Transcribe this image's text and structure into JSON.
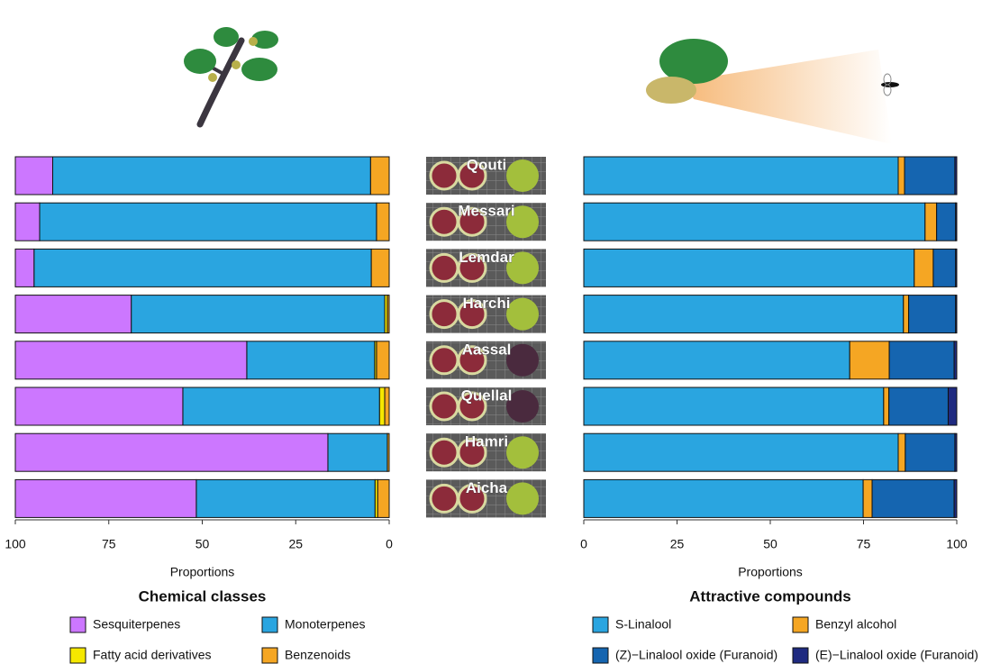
{
  "chart_data": [
    {
      "type": "bar",
      "orientation": "horizontal",
      "stacked": true,
      "xlabel": "Proportions",
      "legend_title": "Chemical classes",
      "categories": [
        "Qouti",
        "Messari",
        "Lemdar",
        "Harchi",
        "Aassal",
        "Quellal",
        "Hamri",
        "Aicha"
      ],
      "xlim": [
        100,
        0
      ],
      "xticks": [
        100,
        75,
        50,
        25,
        0
      ],
      "series": [
        {
          "name": "Sesquiterpenes",
          "color": "#cc77ff",
          "values": [
            10,
            6.5,
            5,
            31,
            61.9,
            44.8,
            83.6,
            48.4
          ]
        },
        {
          "name": "Monoterpenes",
          "color": "#2aa5e0",
          "values": [
            85,
            90.1,
            90.2,
            67.8,
            34.2,
            52.6,
            15.9,
            47.8
          ]
        },
        {
          "name": "Fatty acid derivatives",
          "color": "#f5e800",
          "values": [
            0,
            0,
            0,
            0.7,
            0.5,
            1.4,
            0,
            0.7
          ]
        },
        {
          "name": "Benzenoids",
          "color": "#f5a623",
          "values": [
            5,
            3.4,
            4.8,
            0.5,
            3.4,
            1.2,
            0.5,
            3.1
          ]
        }
      ]
    },
    {
      "type": "bar",
      "orientation": "horizontal",
      "stacked": true,
      "xlabel": "Proportions",
      "legend_title": "Attractive compounds",
      "xlim": [
        0,
        100
      ],
      "xticks": [
        0,
        25,
        50,
        75,
        100
      ],
      "series": [
        {
          "name": "S-Linalool",
          "color": "#2aa5e0",
          "values": [
            84.3,
            91.5,
            88.6,
            85.7,
            71.3,
            80.4,
            84.3,
            74.9
          ]
        },
        {
          "name": "Benzyl alcohol",
          "color": "#f5a623",
          "values": [
            1.7,
            3.1,
            5.1,
            1.4,
            10.6,
            1.4,
            1.9,
            2.4
          ]
        },
        {
          "name": "(Z)−Linalool oxide (Furanoid)",
          "color": "#1565b0",
          "values": [
            13.5,
            5.1,
            6,
            12.6,
            17.4,
            15.9,
            13.3,
            22
          ]
        },
        {
          "name": "(E)−Linalool oxide (Furanoid)",
          "color": "#1f2a80",
          "values": [
            0.5,
            0.3,
            0.3,
            0.3,
            0.7,
            2.3,
            0.5,
            0.7
          ]
        }
      ]
    }
  ]
}
